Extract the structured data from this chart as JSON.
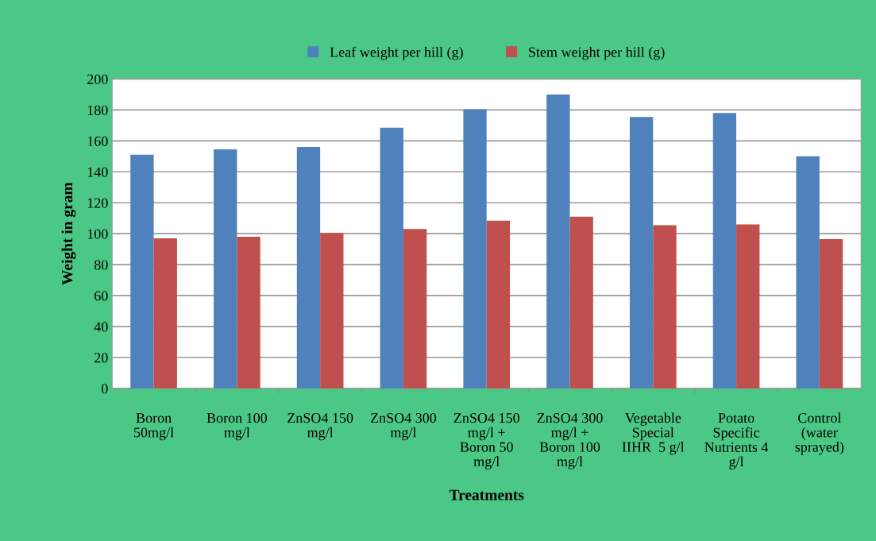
{
  "chart_data": {
    "type": "bar",
    "xlabel": "Treatments",
    "ylabel": "Weight in gram",
    "categories": [
      "Boron\n50mg/l",
      "Boron 100\nmg/l",
      "ZnSO4 150\nmg/l",
      "ZnSO4 300\nmg/l",
      "ZnSO4 150\nmg/l +\nBoron 50\nmg/l",
      "ZnSO4 300\nmg/l +\nBoron 100\nmg/l",
      "Vegetable\nSpecial\nIIHR  5 g/l",
      "Potato\nSpecific\nNutrients 4\ng/l",
      "Control\n(water\nsprayed)"
    ],
    "series": [
      {
        "name": "Leaf weight per hill (g)",
        "color": "#4f81bd",
        "values": [
          151,
          154.5,
          156,
          168.5,
          180.5,
          190,
          175.5,
          178,
          150
        ]
      },
      {
        "name": "Stem weight per hill (g)",
        "color": "#c0504d",
        "values": [
          97,
          98,
          100.5,
          103,
          108.5,
          111,
          105.5,
          106,
          96.5
        ]
      }
    ],
    "ylim": [
      0,
      200
    ],
    "yticks": [
      0,
      20,
      40,
      60,
      80,
      100,
      120,
      140,
      160,
      180,
      200
    ],
    "grid": "y",
    "legend": "top"
  }
}
